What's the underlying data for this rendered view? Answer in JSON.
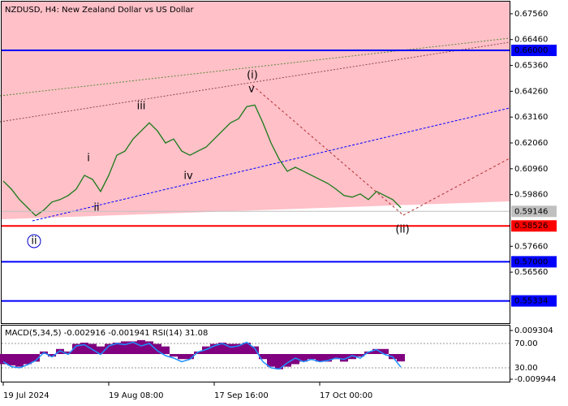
{
  "chart_data": [
    {
      "type": "line",
      "title": "NZDUSD, H4:  New Zealand Dollar vs US Dollar",
      "categories": [
        "19 Jul 2024",
        null,
        null,
        null,
        null,
        null,
        null,
        null,
        null,
        null,
        null,
        null,
        null,
        "19 Aug 08:00",
        null,
        null,
        null,
        null,
        null,
        null,
        null,
        null,
        null,
        null,
        null,
        null,
        "17 Sep 16:00",
        null,
        null,
        null,
        null,
        null,
        null,
        null,
        null,
        null,
        null,
        null,
        null,
        "17 Oct 00:00",
        null,
        null,
        null,
        null,
        null,
        null,
        null,
        null,
        null,
        null
      ],
      "series": [
        {
          "name": "NZDUSD",
          "color": "#1a7a1a",
          "values": [
            0.60439,
            0.60095,
            0.59648,
            0.59304,
            0.5896,
            0.59201,
            0.59545,
            0.59648,
            0.5982,
            0.60095,
            0.6068,
            0.60508,
            0.59992,
            0.6068,
            0.61536,
            0.61712,
            0.62228,
            0.62572,
            0.62916,
            0.62572,
            0.62056,
            0.62228,
            0.61712,
            0.61536,
            0.61712,
            0.61884,
            0.62228,
            0.62572,
            0.62916,
            0.63088,
            0.63604,
            0.63673,
            0.62916,
            0.62056,
            0.61368,
            0.60852,
            0.61024,
            0.60852,
            0.6068,
            0.60508,
            0.60336,
            0.60095,
            0.5982,
            0.59751,
            0.59889,
            0.59648,
            0.59992,
            0.5982,
            0.59648,
            0.593
          ]
        }
      ],
      "ylim": [
        0.54386,
        0.68076
      ],
      "yticks": [
        {
          "value": 0.6756,
          "label": "0.67560"
        },
        {
          "value": 0.6646,
          "label": "0.66460"
        },
        {
          "value": 0.6536,
          "label": "0.65360"
        },
        {
          "value": 0.6426,
          "label": "0.64260"
        },
        {
          "value": 0.6316,
          "label": "0.63160"
        },
        {
          "value": 0.6206,
          "label": "0.62060"
        },
        {
          "value": 0.6096,
          "label": "0.60960"
        },
        {
          "value": 0.5986,
          "label": "0.59860"
        },
        {
          "value": 0.5766,
          "label": "0.57660"
        },
        {
          "value": 0.5656,
          "label": "0.56560"
        }
      ],
      "levels": [
        {
          "value": 0.66,
          "label": "0.66000",
          "color": "#0000ff"
        },
        {
          "value": 0.58526,
          "label": "0.58526",
          "color": "#ff0000"
        },
        {
          "value": 0.57,
          "label": "0.57000",
          "color": "#0000ff"
        },
        {
          "value": 0.55334,
          "label": "0.55334",
          "color": "#0000ff"
        }
      ],
      "current_price": {
        "value": 0.59146,
        "label": "0.59146",
        "color": "#c0c0c0"
      },
      "annotations": [
        {
          "text": "(i)",
          "color": "#d00000"
        },
        {
          "text": "(ii)",
          "color": "#d00000"
        },
        {
          "text": "i",
          "color": "#808080"
        },
        {
          "text": "ii",
          "color": "#808080"
        },
        {
          "text": "iii",
          "color": "#808080"
        },
        {
          "text": "iv",
          "color": "#808080"
        },
        {
          "text": "v",
          "color": "#808080"
        },
        {
          "text": "ii",
          "color": "#0000cc"
        }
      ]
    },
    {
      "type": "bar",
      "title": "MACD(5,34,5) -0.002916 -0.001941 RSI(14) 31.08",
      "series": [
        {
          "name": "MACD",
          "type": "bar",
          "color": "#800080",
          "values": [
            -0.004,
            -0.0045,
            -0.005,
            -0.004,
            -0.003,
            0.001,
            -0.001,
            0.002,
            0.001,
            0.004,
            0.0045,
            0.004,
            0.003,
            0.004,
            0.0045,
            0.005,
            0.005,
            0.0055,
            0.005,
            0.004,
            0.003,
            -0.001,
            -0.002,
            -0.002,
            0.001,
            0.003,
            0.004,
            0.0045,
            0.004,
            0.004,
            0.0045,
            0.003,
            -0.002,
            -0.005,
            -0.006,
            -0.005,
            -0.004,
            -0.003,
            -0.002,
            -0.003,
            -0.003,
            -0.002,
            -0.003,
            -0.002,
            -0.001,
            0.001,
            0.002,
            0.002,
            -0.002,
            -0.002916
          ]
        },
        {
          "name": "RSI(14)",
          "type": "line",
          "axis": "y2",
          "color": "#1e90ff",
          "values": [
            40,
            32,
            30,
            35,
            42,
            55,
            48,
            58,
            52,
            66,
            68,
            60,
            52,
            66,
            70,
            68,
            72,
            66,
            70,
            58,
            50,
            46,
            40,
            44,
            56,
            60,
            66,
            70,
            64,
            66,
            72,
            62,
            40,
            30,
            28,
            38,
            46,
            40,
            44,
            40,
            42,
            46,
            44,
            50,
            46,
            56,
            60,
            52,
            48,
            31.08
          ]
        }
      ],
      "ylim": [
        -0.010906,
        0.01155
      ],
      "yticks": [
        0.009304,
        -0.009944
      ],
      "y2lim": [
        7.3,
        100.7
      ],
      "y2ticks": [
        {
          "value": 70,
          "label": "70.00"
        },
        {
          "value": 30,
          "label": "30.00"
        }
      ]
    }
  ]
}
